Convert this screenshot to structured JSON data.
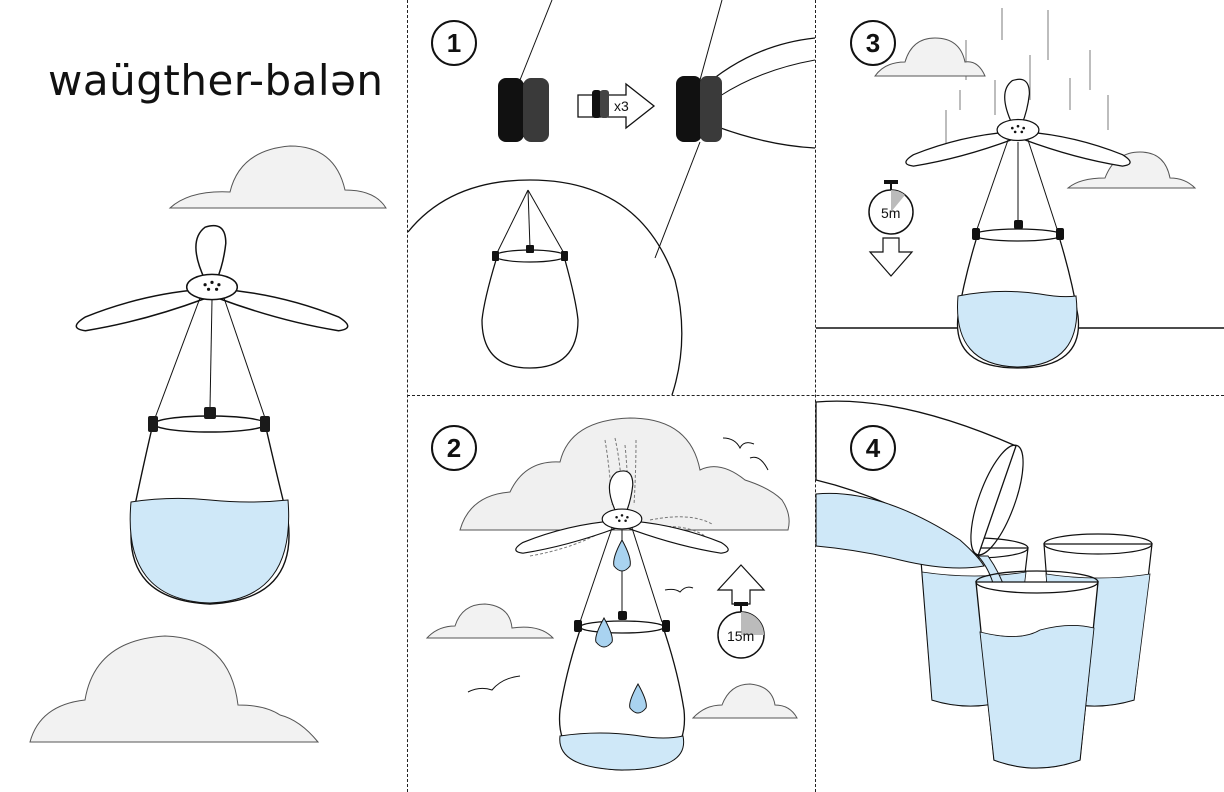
{
  "title": "waügther-balən",
  "colors": {
    "water": "#cfe8f8",
    "water_dark": "#a9d3f0",
    "cloud": "#f0f0f0",
    "outline": "#111111",
    "clip": "#1a1a1a"
  },
  "steps": [
    {
      "number": "1"
    },
    {
      "number": "2"
    },
    {
      "number": "3"
    },
    {
      "number": "4"
    }
  ],
  "step1": {
    "multiplier": "x3"
  },
  "step2": {
    "timer": "15m"
  },
  "step3": {
    "timer": "5m"
  },
  "icons": [
    "cloud-icon",
    "balloon-icon",
    "clip-icon",
    "timer-icon",
    "arrow-up-icon",
    "arrow-down-icon",
    "arrow-right-icon",
    "bird-icon",
    "water-drop-icon",
    "glass-icon",
    "pitcher-icon"
  ]
}
